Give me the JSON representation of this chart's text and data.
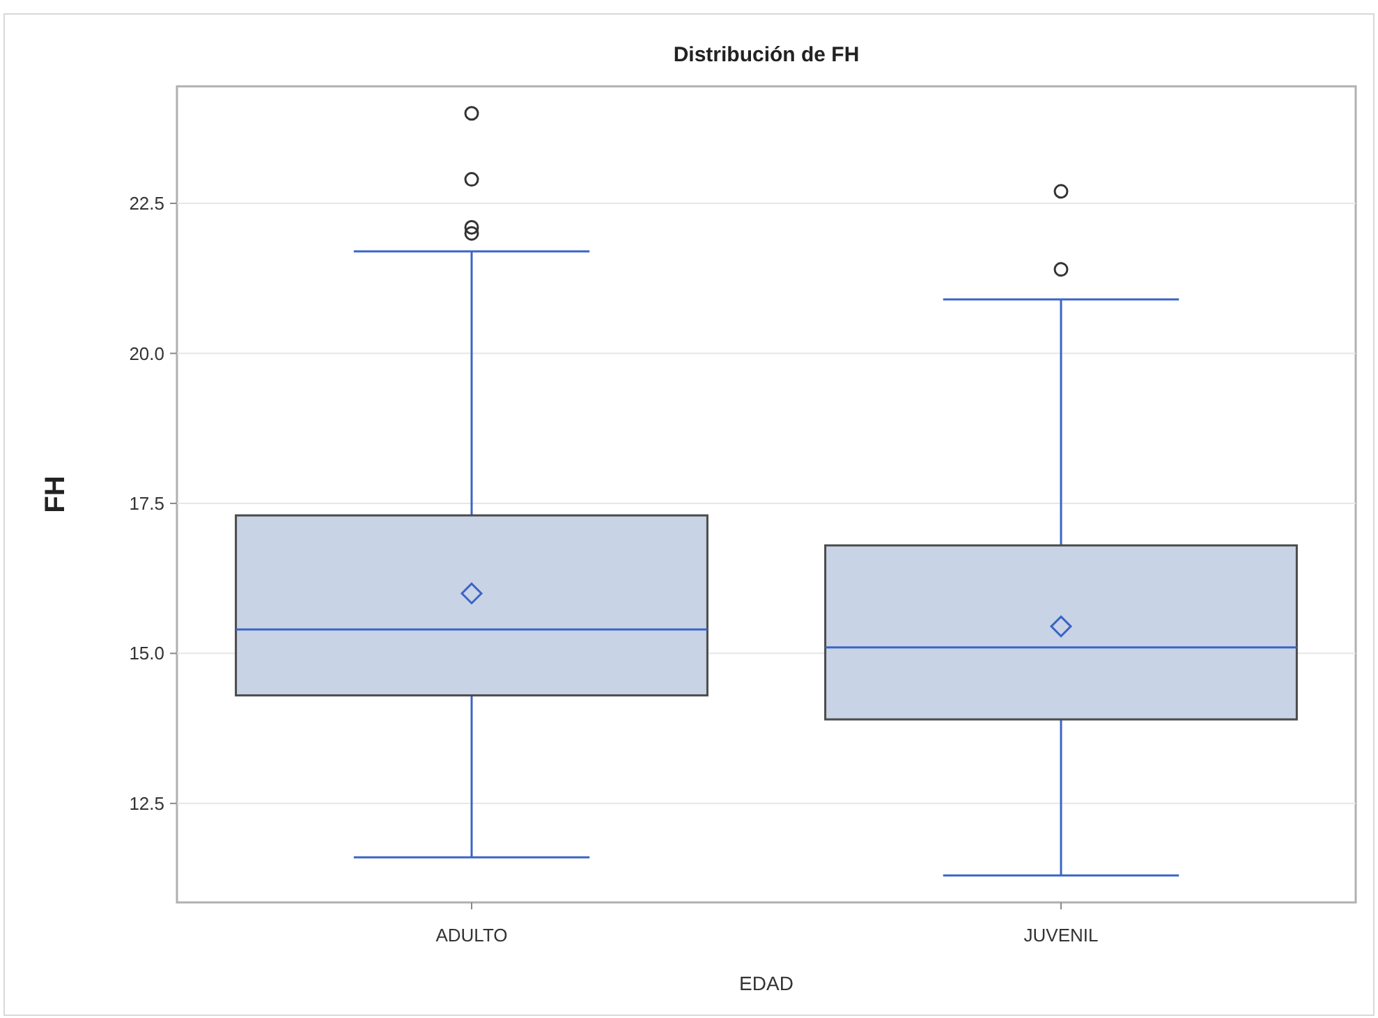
{
  "chart_data": {
    "type": "box",
    "title": "Distribución de FH",
    "xlabel": "EDAD",
    "ylabel": "FH",
    "categories": [
      "ADULTO",
      "JUVENIL"
    ],
    "color": "#c8d3e5",
    "boxes": [
      {
        "low": 11.6,
        "q1": 14.3,
        "median": 15.4,
        "q3": 17.3,
        "high": 21.7,
        "mean": 16.0,
        "outliers": [
          24.0,
          22.9,
          22.1,
          22.0
        ]
      },
      {
        "low": 11.3,
        "q1": 13.9,
        "median": 15.1,
        "q3": 16.8,
        "high": 20.9,
        "mean": 15.45,
        "outliers": [
          22.7,
          21.4
        ]
      }
    ],
    "ylim": [
      10.85,
      24.45
    ],
    "yticks": [
      {
        "value": 12.5,
        "label": "12.5"
      },
      {
        "value": 15,
        "label": "15.0"
      },
      {
        "value": 17.5,
        "label": "17.5"
      },
      {
        "value": 20,
        "label": "20.0"
      },
      {
        "value": 22.5,
        "label": "22.5"
      }
    ],
    "grid": "y"
  }
}
